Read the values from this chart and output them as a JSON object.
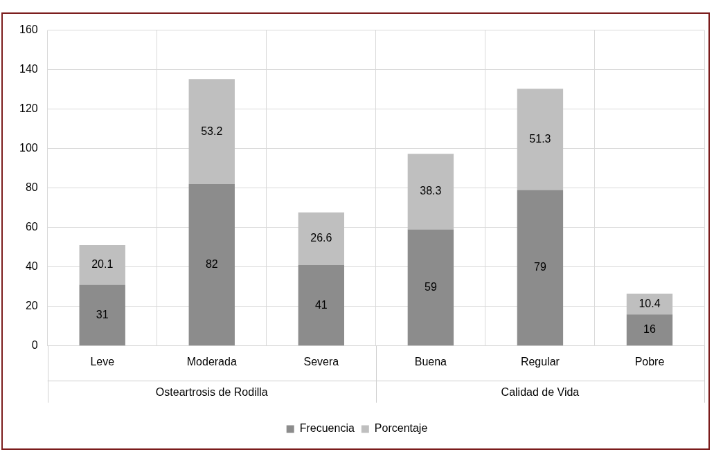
{
  "chart_data": {
    "type": "bar",
    "stacked": true,
    "categories": [
      "Leve",
      "Moderada",
      "Severa",
      "Buena",
      "Regular",
      "Pobre"
    ],
    "series": [
      {
        "name": "Frecuencia",
        "color": "#8c8c8c",
        "values": [
          31,
          82,
          41,
          59,
          79,
          16
        ]
      },
      {
        "name": "Porcentaje",
        "color": "#bfbfbf",
        "values": [
          20.1,
          53.2,
          26.6,
          38.3,
          51.3,
          10.4
        ]
      }
    ],
    "ylim": [
      0,
      160
    ],
    "yticks": [
      0,
      20,
      40,
      60,
      80,
      100,
      120,
      140,
      160
    ],
    "grid": true,
    "legend": "bottom",
    "data_labels": true,
    "annotations": [
      "Osteartrosis de Rodilla",
      "Calidad de Vida"
    ]
  }
}
